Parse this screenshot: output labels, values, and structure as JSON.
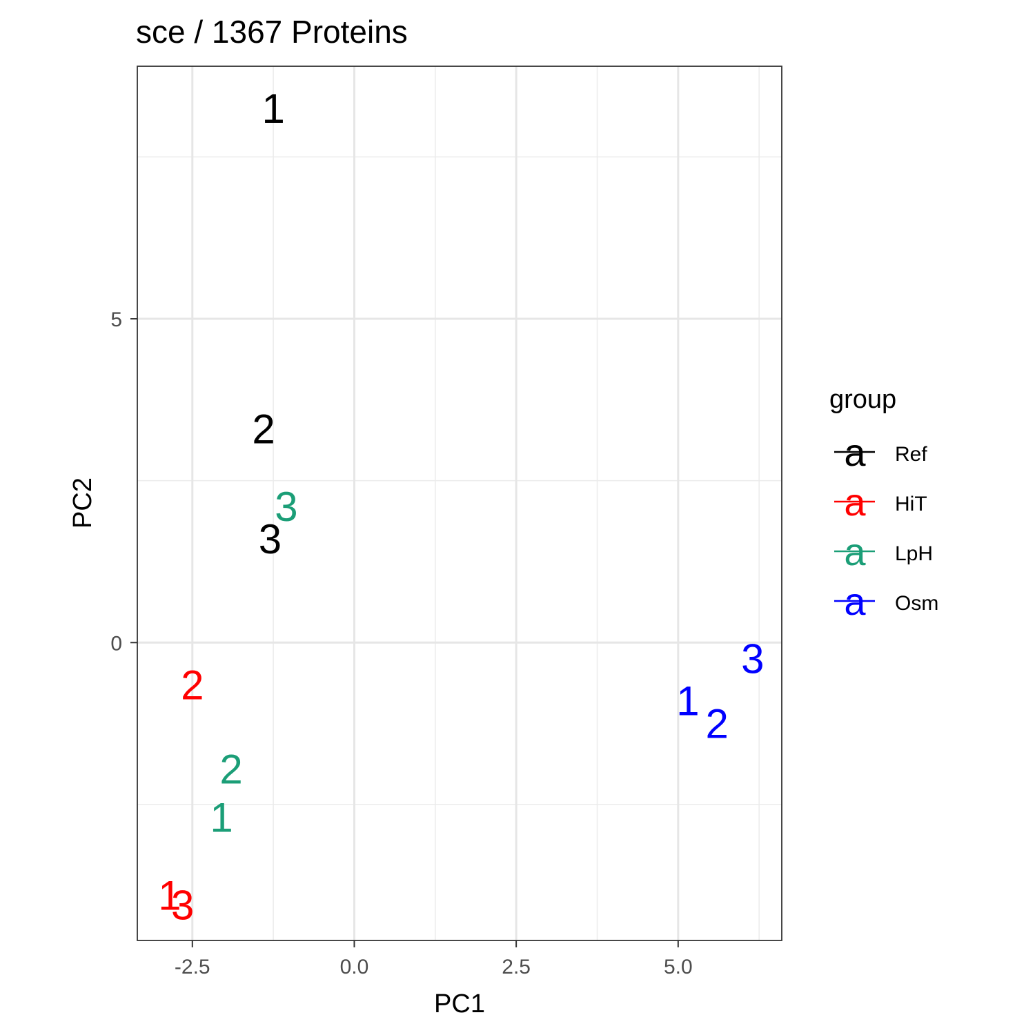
{
  "chart_data": {
    "type": "scatter",
    "title": "sce /  1367  Proteins",
    "xlabel": "PC1",
    "ylabel": "PC2",
    "xlim": [
      -3.35,
      6.6
    ],
    "ylim": [
      -4.6,
      8.9
    ],
    "x_ticks": [
      -2.5,
      0.0,
      2.5,
      5.0
    ],
    "x_tick_labels": [
      "-2.5",
      "0.0",
      "2.5",
      "5.0"
    ],
    "y_ticks": [
      0,
      5
    ],
    "y_tick_labels": [
      "0",
      "5"
    ],
    "grid": true,
    "legend": {
      "title": "group",
      "placement": "right",
      "key_glyph": "a",
      "entries": [
        {
          "label": "Ref",
          "color": "#000000"
        },
        {
          "label": "HiT",
          "color": "#ff0000"
        },
        {
          "label": "LpH",
          "color": "#1b9e77"
        },
        {
          "label": "Osm",
          "color": "#0000ff"
        }
      ]
    },
    "series": [
      {
        "name": "Ref",
        "color": "#000000",
        "points": [
          {
            "label": "1",
            "x": -1.25,
            "y": 8.25
          },
          {
            "label": "2",
            "x": -1.4,
            "y": 3.3
          },
          {
            "label": "3",
            "x": -1.3,
            "y": 1.6
          }
        ]
      },
      {
        "name": "HiT",
        "color": "#ff0000",
        "points": [
          {
            "label": "1",
            "x": -2.85,
            "y": -3.9
          },
          {
            "label": "2",
            "x": -2.5,
            "y": -0.65
          },
          {
            "label": "3",
            "x": -2.65,
            "y": -4.05
          }
        ]
      },
      {
        "name": "LpH",
        "color": "#1b9e77",
        "points": [
          {
            "label": "1",
            "x": -2.05,
            "y": -2.7
          },
          {
            "label": "2",
            "x": -1.9,
            "y": -1.95
          },
          {
            "label": "3",
            "x": -1.05,
            "y": 2.1
          }
        ]
      },
      {
        "name": "Osm",
        "color": "#0000ff",
        "points": [
          {
            "label": "1",
            "x": 5.15,
            "y": -0.9
          },
          {
            "label": "2",
            "x": 5.6,
            "y": -1.25
          },
          {
            "label": "3",
            "x": 6.15,
            "y": -0.25
          }
        ]
      }
    ]
  }
}
